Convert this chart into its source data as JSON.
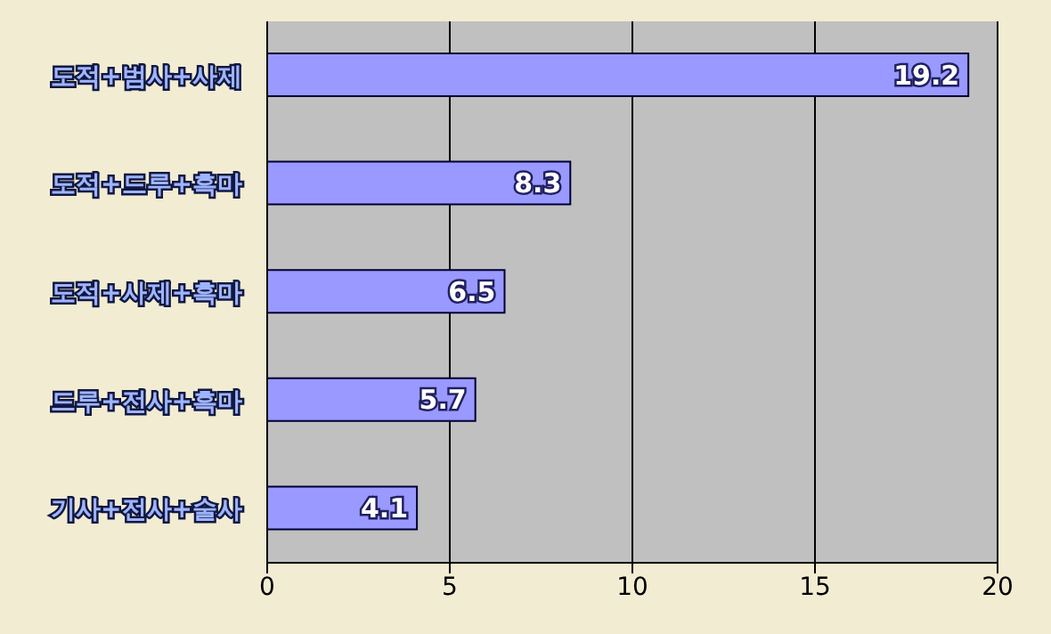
{
  "chart_data": {
    "type": "bar",
    "orientation": "horizontal",
    "categories": [
      "도적+범사+사제",
      "도적+드루+흑마",
      "도적+사제+흑마",
      "드루+전사+흑마",
      "기사+전사+술사"
    ],
    "values": [
      19.2,
      8.3,
      6.5,
      5.7,
      4.1
    ],
    "color": "#9999ff",
    "xlim": [
      0,
      20
    ],
    "xticks": [
      0,
      5,
      10,
      15,
      20
    ],
    "grid": "x",
    "data_labels": true
  }
}
